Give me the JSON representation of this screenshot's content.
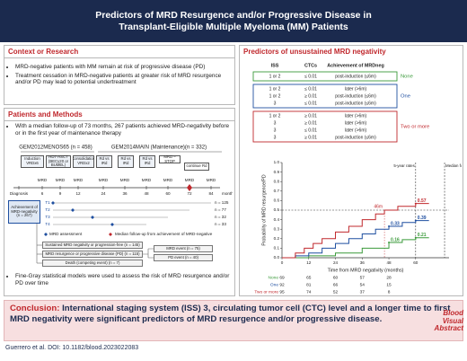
{
  "header": {
    "title": "Predictors of MRD Resurgence and/or Progressive Disease in Transplant-Eligible Multiple Myeloma (MM) Patients"
  },
  "context": {
    "heading": "Context or Research",
    "bullets": [
      "MRD-negative patients with MM remain at risk of progressive disease (PD)",
      "Treatment cessation in MRD-negative patients at greater risk of MRD resurgence and/or PD may lead to potential undertreatment"
    ]
  },
  "methods": {
    "heading": "Patients and Methods",
    "bullets": [
      "With a median follow-up of 73 months, 267 patients achieved MRD-negativity before or in the first year of maintenance therapy",
      "Fine-Gray statistical models were used to assess the risk of MRD resurgence and/or PD over time"
    ],
    "timeline": {
      "studies": [
        "GEM2012MENOS65 (n = 458)",
        "GEM2014MAIN (Maintenance)(n = 332)"
      ],
      "treatments": [
        "Induction VRDx6",
        "HDT-ASCT (BECy20 or BUMEL)",
        "Consolidation VRDx2",
        "Rd vs IRd",
        "Rd vs IRd",
        "Rd vs IRd",
        "MRD – STOP",
        "continue Rd"
      ],
      "assessment": "MRD",
      "timepoints": [
        "Diagnosis",
        "6",
        "9",
        "12",
        "24",
        "36",
        "48",
        "60",
        "72",
        "84"
      ],
      "unit": "months",
      "achievement": "Achievement of MRD-negativity (n = 267)",
      "arm_labels": [
        "T1",
        "T2",
        "T3",
        "T4"
      ],
      "arms": [
        "n = 125",
        "n = 77",
        "n = 32",
        "n = 33"
      ],
      "legend": [
        "MRD assessment",
        "Median follow-up from achievement of MRD-negative"
      ],
      "outcomes": [
        "Sustained MRD negativity or progression-free (n = 145)",
        "MRD resurgence or progressive disease (PD) (n = 115)",
        "Death (competing event) (n = 7)"
      ],
      "events": [
        "MRD event (n = 75)",
        "PD event (n = 40)"
      ]
    }
  },
  "predictors": {
    "heading": "Predictors of unsustained MRD negativity",
    "table": {
      "columns": [
        "ISS",
        "CTCs",
        "Achievement of MRDneg"
      ],
      "groups": [
        [
          [
            "1 or 2",
            "≤ 0.01",
            "post-induction (≤6m)"
          ]
        ],
        [
          [
            "1 or 2",
            "≤ 0.01",
            "later (>6m)"
          ],
          [
            "1 or 2",
            "≥ 0.01",
            "post-induction (≤6m)"
          ],
          [
            "3",
            "≤ 0.01",
            "post-induction (≤6m)"
          ]
        ],
        [
          [
            "1 or 2",
            "≥ 0.01",
            "later (>6m)"
          ],
          [
            "3",
            "≥ 0.01",
            "later (>6m)"
          ],
          [
            "3",
            "≤ 0.01",
            "later (>6m)"
          ],
          [
            "3",
            "≥ 0.01",
            "post-induction (≤6m)"
          ]
        ]
      ]
    },
    "chart": {
      "type": "step",
      "ylabel": "Probability of MRD resurgence/PD",
      "xlabel": "Time from MRD negativity (months)",
      "xlim": [
        0,
        75
      ],
      "ylim": [
        0,
        1
      ],
      "xticks": [
        0,
        12,
        24,
        36,
        48,
        60
      ],
      "yticks": [
        {
          "value": 0,
          "label": "0.0"
        },
        {
          "value": 0.1,
          "label": "0.1"
        },
        {
          "value": 0.2,
          "label": "0.2"
        },
        {
          "value": 0.3,
          "label": "0.3"
        },
        {
          "value": 0.4,
          "label": "0.4"
        },
        {
          "value": 0.5,
          "label": "0.5"
        },
        {
          "value": 0.6,
          "label": "0.6"
        },
        {
          "value": 0.7,
          "label": "0.7"
        },
        {
          "value": 0.8,
          "label": "0.8"
        },
        {
          "value": 0.9,
          "label": "0.9"
        },
        {
          "value": 1,
          "label": "1.0"
        }
      ],
      "series": [
        {
          "name": "None",
          "color": "#3a9a3a",
          "x": [
            0,
            12,
            24,
            36,
            48,
            54,
            60,
            66
          ],
          "values": [
            0,
            0.02,
            0.05,
            0.1,
            0.16,
            0.19,
            0.21,
            0.21
          ],
          "labels": [
            {
              "x": 48,
              "value": 0.16
            },
            {
              "x": 60,
              "value": 0.21
            }
          ],
          "risk": [
            69,
            65,
            60,
            57,
            28
          ]
        },
        {
          "name": "One",
          "color": "#1f4fa0",
          "x": [
            0,
            6,
            12,
            18,
            24,
            30,
            36,
            42,
            48,
            54,
            60,
            66
          ],
          "values": [
            0,
            0.02,
            0.05,
            0.1,
            0.15,
            0.2,
            0.25,
            0.3,
            0.33,
            0.37,
            0.39,
            0.39
          ],
          "labels": [
            {
              "x": 48,
              "value": 0.33
            },
            {
              "x": 60,
              "value": 0.39
            }
          ],
          "risk": [
            92,
            81,
            66,
            54,
            15
          ]
        },
        {
          "name": "Two or more",
          "color": "#c0282d",
          "x": [
            0,
            6,
            10,
            14,
            18,
            24,
            30,
            36,
            42,
            46,
            52,
            60,
            66
          ],
          "values": [
            0,
            0.05,
            0.1,
            0.15,
            0.2,
            0.27,
            0.33,
            0.4,
            0.46,
            0.5,
            0.54,
            0.57,
            0.57
          ],
          "labels": [
            {
              "x": 60,
              "value": 0.57
            }
          ],
          "risk": [
            95,
            74,
            52,
            37,
            8
          ]
        }
      ],
      "median": {
        "value": 46,
        "label": "46m",
        "y": 0.5
      },
      "vlines": [
        {
          "x": 60,
          "label": "5-year rates"
        },
        {
          "x": 73,
          "label": "Median follow-up"
        }
      ]
    }
  },
  "conclusion": {
    "label": "Conclusion:",
    "text": "International staging system (ISS) 3, circulating tumor cell (CTC) level and a longer time to first MRD negativity were significant predictors of MRD resurgence and/or progressive disease."
  },
  "footer": {
    "citation": "Guerrero et al. DOI: 10.1182/blood.2023022083",
    "logo": [
      "Blood",
      "Visual",
      "Abstract"
    ]
  }
}
